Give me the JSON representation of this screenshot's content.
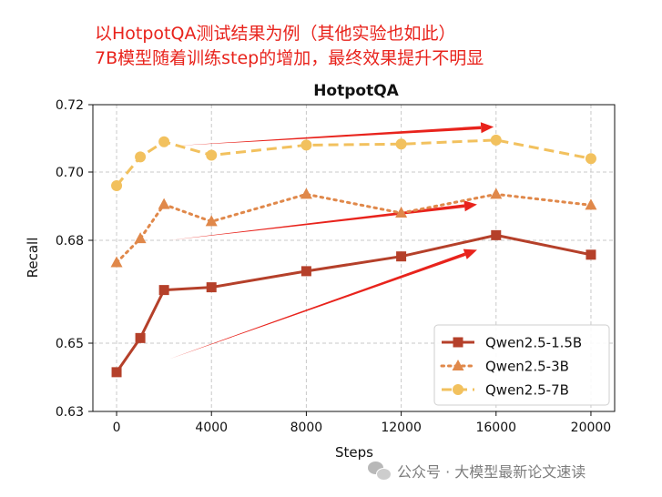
{
  "annotations": {
    "line1": "以HotpotQA测试结果为例（其他实验也如此）",
    "line2": "7B模型随着训练step的增加，最终效果提升不明显"
  },
  "watermark": {
    "text": "公众号 · 大模型最新论文速读",
    "icon": "wechat-icon"
  },
  "chart_data": {
    "type": "line",
    "title": "HotpotQA",
    "xlabel": "Steps",
    "ylabel": "Recall",
    "x": [
      0,
      1000,
      2000,
      4000,
      8000,
      12000,
      16000,
      20000
    ],
    "xticks": [
      0,
      4000,
      8000,
      12000,
      16000,
      20000
    ],
    "xtick_labels": [
      "0",
      "4000",
      "8000",
      "12000",
      "16000",
      "20000"
    ],
    "xlim": [
      -1000,
      21000
    ],
    "ylim": [
      0.63,
      0.72
    ],
    "yticks": [
      0.63,
      0.65,
      0.68,
      0.7,
      0.72
    ],
    "ytick_labels": [
      "0.63",
      "0.65",
      "0.68",
      "0.70",
      "0.72"
    ],
    "grid": true,
    "legend_position": "lower-right",
    "series": [
      {
        "name": "Qwen2.5-1.5B",
        "values": [
          0.6415,
          0.6515,
          0.6655,
          0.6663,
          0.671,
          0.6753,
          0.6815,
          0.6758
        ],
        "color": "#b5402a",
        "linestyle": "solid",
        "marker": "square"
      },
      {
        "name": "Qwen2.5-3B",
        "values": [
          0.6735,
          0.6805,
          0.6905,
          0.6855,
          0.6935,
          0.688,
          0.6935,
          0.6903
        ],
        "color": "#e0884a",
        "linestyle": "dotted",
        "marker": "triangle"
      },
      {
        "name": "Qwen2.5-7B",
        "values": [
          0.696,
          0.7045,
          0.709,
          0.705,
          0.708,
          0.7083,
          0.7095,
          0.704
        ],
        "color": "#f2c15e",
        "linestyle": "dashed",
        "marker": "circle"
      }
    ],
    "arrow_color": "#e8231c",
    "arrows": [
      {
        "from": [
          2500,
          0.7078
        ],
        "to": [
          15900,
          0.7134
        ]
      },
      {
        "from": [
          2200,
          0.68
        ],
        "to": [
          15200,
          0.6905
        ]
      },
      {
        "from": [
          2200,
          0.6453
        ],
        "to": [
          15200,
          0.6772
        ]
      }
    ]
  }
}
